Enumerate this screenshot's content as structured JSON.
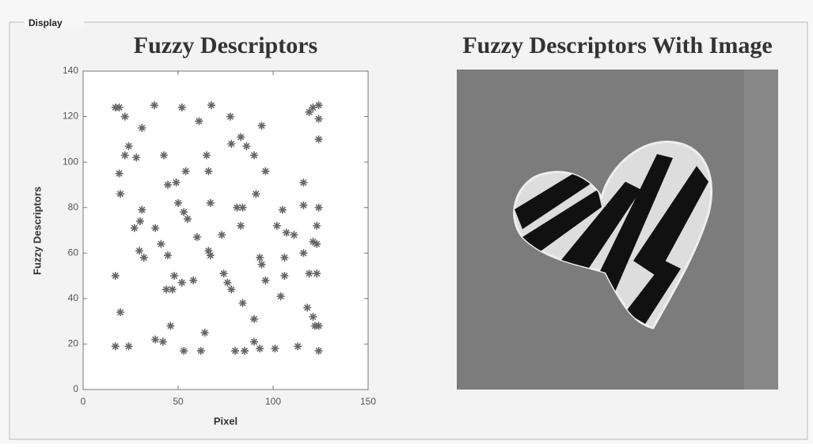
{
  "panel": {
    "title": "Display"
  },
  "chart_data": {
    "type": "scatter",
    "title": "Fuzzy Descriptors",
    "x_label": "Pixel",
    "y_label": "Fuzzy Descriptors",
    "x": [
      17,
      19,
      22,
      37.5,
      52,
      67.5,
      61,
      77.5,
      119,
      121,
      124,
      124,
      124,
      94,
      31,
      83,
      86,
      78,
      24,
      28,
      22,
      42.5,
      65,
      54,
      19,
      66,
      96,
      90,
      44.6,
      49,
      19.6,
      31,
      50,
      53,
      55,
      67,
      81,
      84,
      91,
      105,
      116,
      116,
      124,
      27,
      30,
      38,
      83,
      73,
      60,
      102,
      107,
      111,
      123,
      116,
      121,
      123,
      29.6,
      32,
      41,
      44.6,
      66,
      67,
      48,
      52,
      58,
      74,
      76,
      78,
      93,
      94,
      96,
      106,
      106,
      104,
      119,
      123,
      17,
      43.8,
      47,
      19.6,
      84,
      118,
      121,
      46,
      90,
      93,
      101,
      113,
      122,
      124,
      38,
      42,
      17,
      24,
      53,
      62,
      80,
      85,
      124,
      90,
      64
    ],
    "values": [
      124,
      124,
      120,
      125,
      124,
      125,
      118,
      120,
      122,
      124,
      125,
      119,
      110,
      116,
      115,
      111,
      107,
      108,
      107,
      102,
      103,
      103,
      103,
      96,
      95,
      96,
      96,
      103,
      90,
      91,
      86,
      79,
      82,
      78,
      75,
      82,
      80,
      80,
      86,
      79,
      91,
      81,
      80,
      71,
      74,
      71,
      72,
      68,
      67,
      72,
      69,
      68,
      72,
      60,
      65,
      64,
      61,
      58,
      64,
      59,
      61,
      59,
      50,
      47,
      48,
      51,
      47,
      44,
      58,
      55,
      48,
      58,
      50,
      41,
      51,
      51,
      50,
      44,
      44,
      34,
      38,
      36,
      32,
      28,
      31,
      18,
      18,
      19,
      28,
      28,
      22,
      21,
      19,
      19,
      17,
      17,
      17,
      17,
      17,
      21,
      25
    ],
    "color": "#666666",
    "xlim": [
      0,
      150
    ],
    "ylim": [
      0,
      140
    ],
    "xticks": [
      0,
      50,
      100,
      150
    ],
    "yticks": [
      0,
      20,
      40,
      60,
      80,
      100,
      120,
      140
    ]
  },
  "image_panel": {
    "title": "Fuzzy Descriptors With Image"
  }
}
